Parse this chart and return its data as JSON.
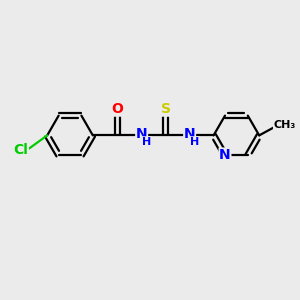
{
  "bg_color": "#ebebeb",
  "bond_color": "#000000",
  "bond_width": 1.6,
  "atom_colors": {
    "O": "#ff0000",
    "S": "#cccc00",
    "N": "#0000ff",
    "Cl": "#00cc00",
    "C": "#000000"
  },
  "font_size_atom": 10,
  "font_size_small": 8,
  "fig_w": 3.0,
  "fig_h": 3.0,
  "xlim": [
    0,
    10
  ],
  "ylim": [
    0,
    10
  ]
}
